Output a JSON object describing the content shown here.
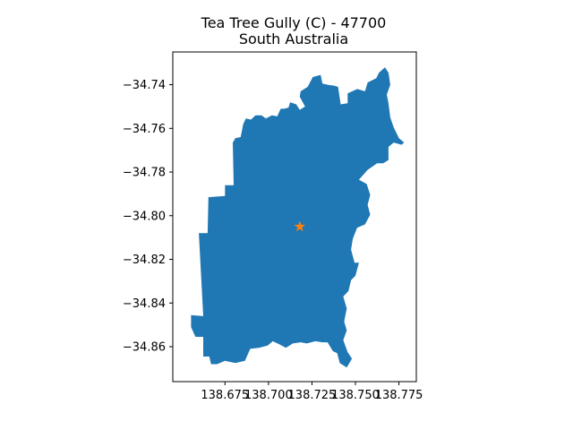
{
  "title_line1": "Tea Tree Gully (C) - 47700",
  "title_line2": "South Australia",
  "chart_data": {
    "type": "map",
    "region_name": "Tea Tree Gully (C)",
    "region_code": "47700",
    "state": "South Australia",
    "fill_color": "#1f77b4",
    "marker": {
      "symbol": "star",
      "color": "#ff7f0e",
      "lon": 138.718,
      "lat": -34.805
    },
    "xlim": [
      138.645,
      138.785
    ],
    "ylim": [
      -34.876,
      -34.725
    ],
    "xticks": [
      138.675,
      138.7,
      138.725,
      138.75,
      138.775
    ],
    "xtick_labels": [
      "138.675",
      "138.700",
      "138.725",
      "138.750",
      "138.775"
    ],
    "yticks": [
      -34.74,
      -34.76,
      -34.78,
      -34.8,
      -34.82,
      -34.84,
      -34.86
    ],
    "ytick_labels": [
      "−34.74",
      "−34.76",
      "−34.78",
      "−34.80",
      "−34.82",
      "−34.84",
      "−34.86"
    ],
    "polygon": [
      [
        138.6555,
        -34.8455
      ],
      [
        138.6625,
        -34.846
      ],
      [
        138.66,
        -34.808
      ],
      [
        138.665,
        -34.808
      ],
      [
        138.6655,
        -34.7915
      ],
      [
        138.675,
        -34.791
      ],
      [
        138.675,
        -34.786
      ],
      [
        138.68,
        -34.786
      ],
      [
        138.6795,
        -34.7665
      ],
      [
        138.681,
        -34.7645
      ],
      [
        138.684,
        -34.764
      ],
      [
        138.6855,
        -34.758
      ],
      [
        138.687,
        -34.7555
      ],
      [
        138.69,
        -34.756
      ],
      [
        138.6925,
        -34.754
      ],
      [
        138.696,
        -34.754
      ],
      [
        138.6985,
        -34.7555
      ],
      [
        138.702,
        -34.754
      ],
      [
        138.705,
        -34.7545
      ],
      [
        138.707,
        -34.751
      ],
      [
        138.709,
        -34.751
      ],
      [
        138.7115,
        -34.7505
      ],
      [
        138.7125,
        -34.748
      ],
      [
        138.716,
        -34.749
      ],
      [
        138.718,
        -34.7515
      ],
      [
        138.721,
        -34.75
      ],
      [
        138.718,
        -34.7455
      ],
      [
        138.7185,
        -34.743
      ],
      [
        138.7225,
        -34.741
      ],
      [
        138.7255,
        -34.7365
      ],
      [
        138.73,
        -34.7355
      ],
      [
        138.731,
        -34.7395
      ],
      [
        138.734,
        -34.74
      ],
      [
        138.738,
        -34.7405
      ],
      [
        138.74,
        -34.741
      ],
      [
        138.7415,
        -34.749
      ],
      [
        138.7455,
        -34.7485
      ],
      [
        138.7455,
        -34.744
      ],
      [
        138.751,
        -34.742
      ],
      [
        138.7555,
        -34.743
      ],
      [
        138.757,
        -34.739
      ],
      [
        138.762,
        -34.737
      ],
      [
        138.7635,
        -34.7345
      ],
      [
        138.767,
        -34.732
      ],
      [
        138.769,
        -34.7345
      ],
      [
        138.77,
        -34.74
      ],
      [
        138.768,
        -34.7445
      ],
      [
        138.769,
        -34.7485
      ],
      [
        138.77,
        -34.755
      ],
      [
        138.772,
        -34.7595
      ],
      [
        138.775,
        -34.7645
      ],
      [
        138.778,
        -34.7665
      ],
      [
        138.7765,
        -34.7675
      ],
      [
        138.772,
        -34.7665
      ],
      [
        138.769,
        -34.7685
      ],
      [
        138.769,
        -34.7745
      ],
      [
        138.766,
        -34.776
      ],
      [
        138.7625,
        -34.776
      ],
      [
        138.757,
        -34.779
      ],
      [
        138.752,
        -34.7835
      ],
      [
        138.7565,
        -34.7855
      ],
      [
        138.7585,
        -34.7905
      ],
      [
        138.757,
        -34.795
      ],
      [
        138.7585,
        -34.7995
      ],
      [
        138.7555,
        -34.804
      ],
      [
        138.751,
        -34.8055
      ],
      [
        138.7485,
        -34.8105
      ],
      [
        138.7475,
        -34.8155
      ],
      [
        138.7495,
        -34.8215
      ],
      [
        138.752,
        -34.8215
      ],
      [
        138.75,
        -34.8275
      ],
      [
        138.7475,
        -34.8295
      ],
      [
        138.746,
        -34.8345
      ],
      [
        138.743,
        -34.837
      ],
      [
        138.745,
        -34.8425
      ],
      [
        138.7435,
        -34.8485
      ],
      [
        138.745,
        -34.8525
      ],
      [
        138.743,
        -34.857
      ],
      [
        138.7455,
        -34.8625
      ],
      [
        138.748,
        -34.8655
      ],
      [
        138.745,
        -34.8695
      ],
      [
        138.741,
        -34.8675
      ],
      [
        138.7395,
        -34.863
      ],
      [
        138.737,
        -34.862
      ],
      [
        138.734,
        -34.858
      ],
      [
        138.731,
        -34.858
      ],
      [
        138.727,
        -34.8575
      ],
      [
        138.722,
        -34.8585
      ],
      [
        138.7185,
        -34.858
      ],
      [
        138.714,
        -34.8585
      ],
      [
        138.71,
        -34.8605
      ],
      [
        138.7065,
        -34.859
      ],
      [
        138.7025,
        -34.8575
      ],
      [
        138.6995,
        -34.8595
      ],
      [
        138.6945,
        -34.8605
      ],
      [
        138.6895,
        -34.861
      ],
      [
        138.6865,
        -34.8665
      ],
      [
        138.681,
        -34.8675
      ],
      [
        138.675,
        -34.8665
      ],
      [
        138.6705,
        -34.868
      ],
      [
        138.667,
        -34.868
      ],
      [
        138.666,
        -34.8645
      ],
      [
        138.6625,
        -34.8645
      ],
      [
        138.6625,
        -34.8555
      ],
      [
        138.658,
        -34.8555
      ],
      [
        138.6555,
        -34.851
      ]
    ]
  }
}
